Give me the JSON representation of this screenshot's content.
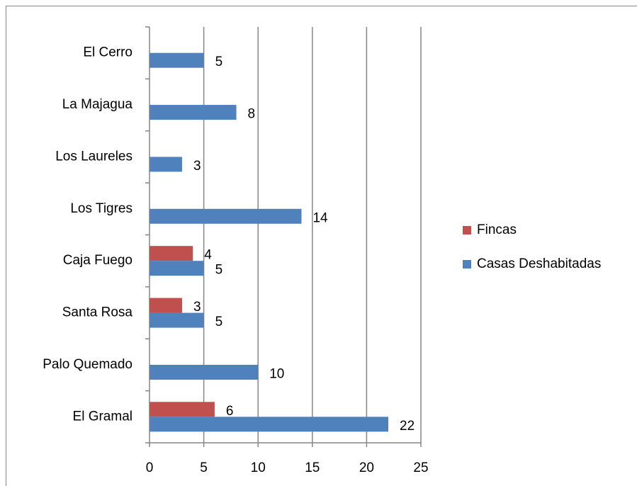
{
  "chart_data": {
    "type": "hbar",
    "categories": [
      "El Cerro",
      "La Majagua",
      "Los Laureles",
      "Los Tigres",
      "Caja Fuego",
      "Santa Rosa",
      "Palo Quemado",
      "El Gramal"
    ],
    "series": [
      {
        "name": "Fincas",
        "color": "#c0504d",
        "values": [
          null,
          null,
          null,
          null,
          4,
          3,
          null,
          6
        ]
      },
      {
        "name": "Casas Deshabitadas",
        "color": "#4f81bd",
        "values": [
          5,
          8,
          3,
          14,
          5,
          5,
          10,
          22
        ]
      }
    ],
    "xlim": [
      0,
      25
    ],
    "xticks": [
      0,
      5,
      10,
      15,
      20,
      25
    ],
    "grid": true,
    "legend": "right"
  }
}
